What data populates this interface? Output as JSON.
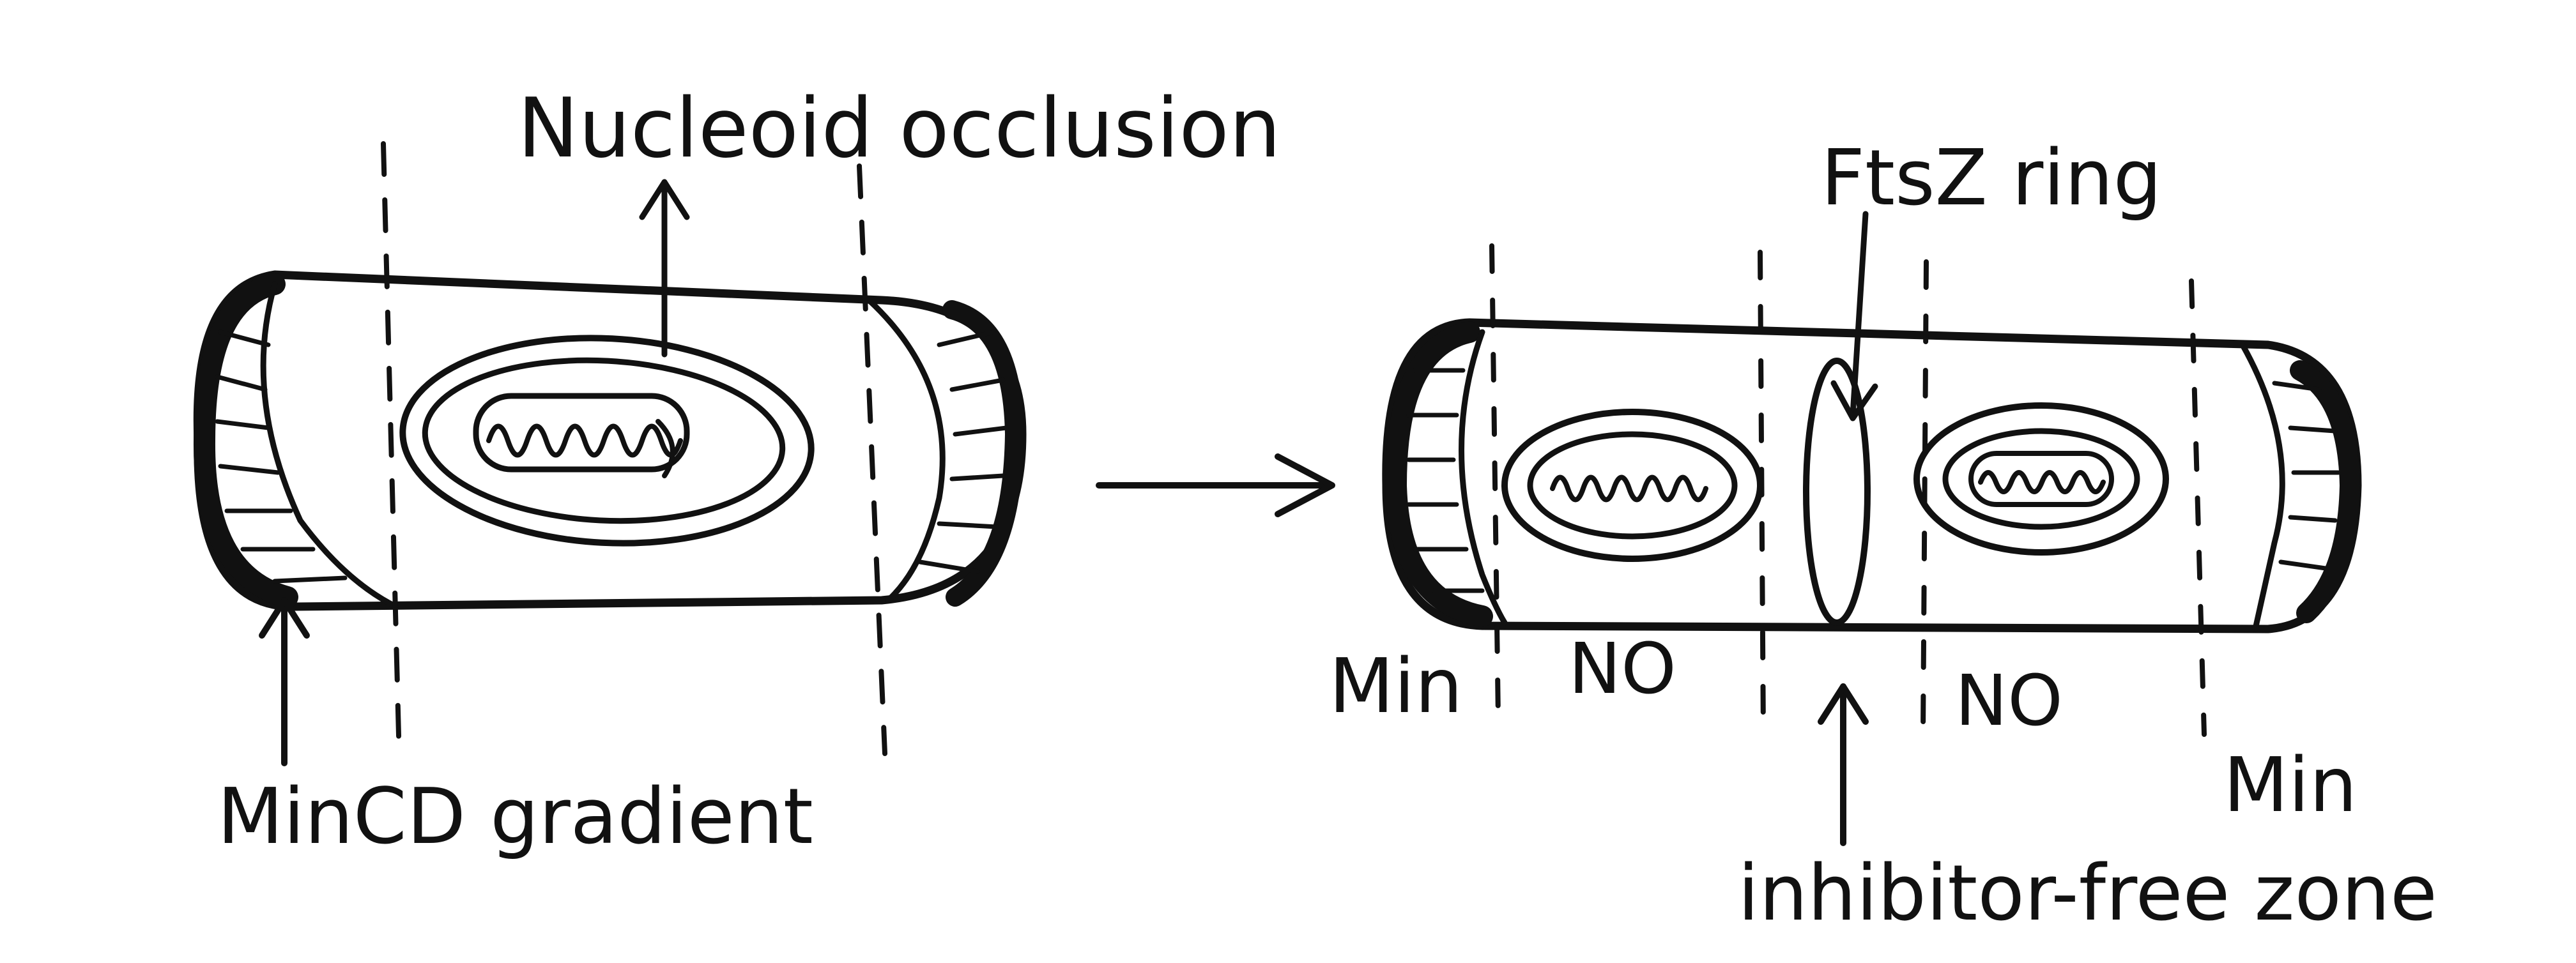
{
  "labels": {
    "nucleoid_occlusion": "Nucleoid occlusion",
    "mincd_gradient": "MinCD gradient",
    "ftsz_ring": "FtsZ ring",
    "left_min": "Min",
    "left_no": "NO",
    "right_no": "NO",
    "right_min": "Min",
    "inhibitor_free_zone": "inhibitor-free zone"
  },
  "colors": {
    "ink": "#111111",
    "background": "#ffffff"
  },
  "icons": {
    "process_arrow": "right-arrow"
  }
}
